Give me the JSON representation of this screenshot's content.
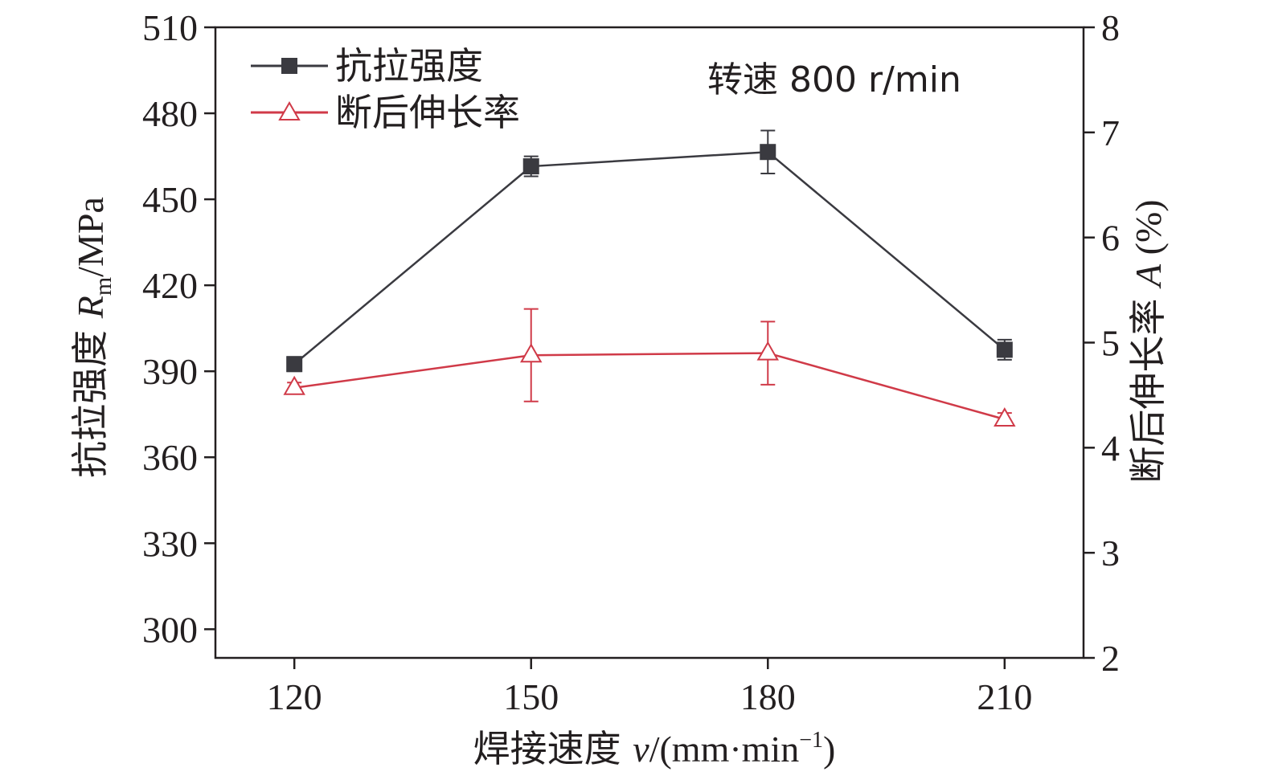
{
  "chart_data": {
    "type": "line",
    "x": [
      120,
      150,
      180,
      210
    ],
    "x_ticks": [
      "120",
      "150",
      "180",
      "210"
    ],
    "xlim": [
      110,
      220
    ],
    "xlabel": {
      "prefix": "焊接速度 ",
      "var": "v",
      "unit": "/(mm·min",
      "sup": "−1",
      "close": ")"
    },
    "ylabel_left": {
      "prefix": "抗拉强度 ",
      "var": "R",
      "sub": "m",
      "unit": "/MPa"
    },
    "ylabel_right": {
      "prefix": "断后伸长率 ",
      "var": "A",
      "unit": " (%)"
    },
    "ylim_left": [
      290,
      510
    ],
    "yticks_left": [
      "300",
      "330",
      "360",
      "390",
      "420",
      "450",
      "480",
      "510"
    ],
    "ylim_right": [
      2,
      8
    ],
    "yticks_right": [
      "2",
      "3",
      "4",
      "5",
      "6",
      "7",
      "8"
    ],
    "series": [
      {
        "name": "抗拉强度",
        "axis": "left",
        "color": "#3a3a40",
        "marker": "filled-square",
        "values": [
          392.5,
          461.5,
          466.5,
          397.5
        ],
        "errors": [
          2.5,
          3.5,
          7.5,
          3.5
        ]
      },
      {
        "name": "断后伸长率",
        "axis": "right",
        "color": "#d03a48",
        "marker": "open-triangle",
        "values": [
          4.57,
          4.88,
          4.9,
          4.27
        ],
        "errors": [
          0.05,
          0.44,
          0.3,
          0.06
        ]
      }
    ],
    "legend_position": "top-left",
    "annotation": "转速 800 r/min",
    "grid": false
  }
}
